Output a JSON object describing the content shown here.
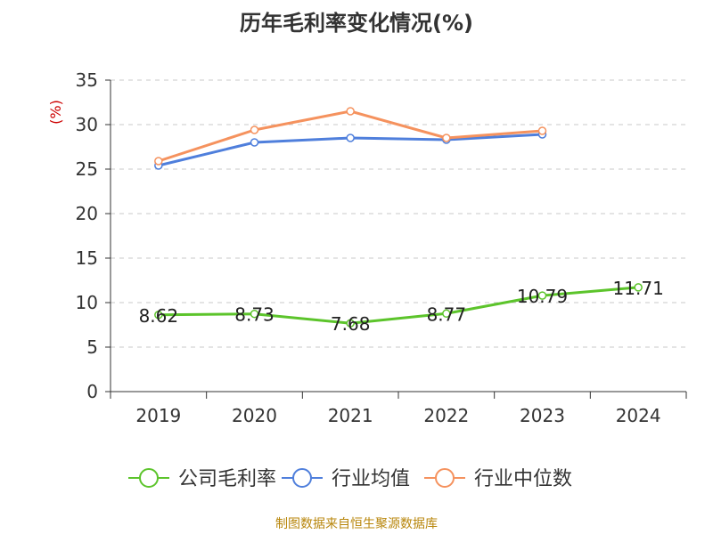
{
  "chart_data": {
    "type": "line",
    "title": "历年毛利率变化情况(%)",
    "ylabel": "(%)",
    "categories": [
      "2019",
      "2020",
      "2021",
      "2022",
      "2023",
      "2024"
    ],
    "ylim": [
      0,
      35
    ],
    "yticks": [
      0,
      5,
      10,
      15,
      20,
      25,
      30,
      35
    ],
    "grid": true,
    "legend_position": "bottom",
    "series": [
      {
        "name": "公司毛利率",
        "color": "#5cc42b",
        "values": [
          8.62,
          8.73,
          7.68,
          8.77,
          10.79,
          11.71
        ],
        "show_labels": true
      },
      {
        "name": "行业均值",
        "color": "#4f7fdc",
        "values": [
          25.4,
          28.0,
          28.5,
          28.3,
          28.9,
          null
        ],
        "show_labels": false
      },
      {
        "name": "行业中位数",
        "color": "#f5925e",
        "values": [
          25.9,
          29.4,
          31.5,
          28.5,
          29.3,
          null
        ],
        "show_labels": false
      }
    ]
  },
  "source_note": "制图数据来自恒生聚源数据库"
}
